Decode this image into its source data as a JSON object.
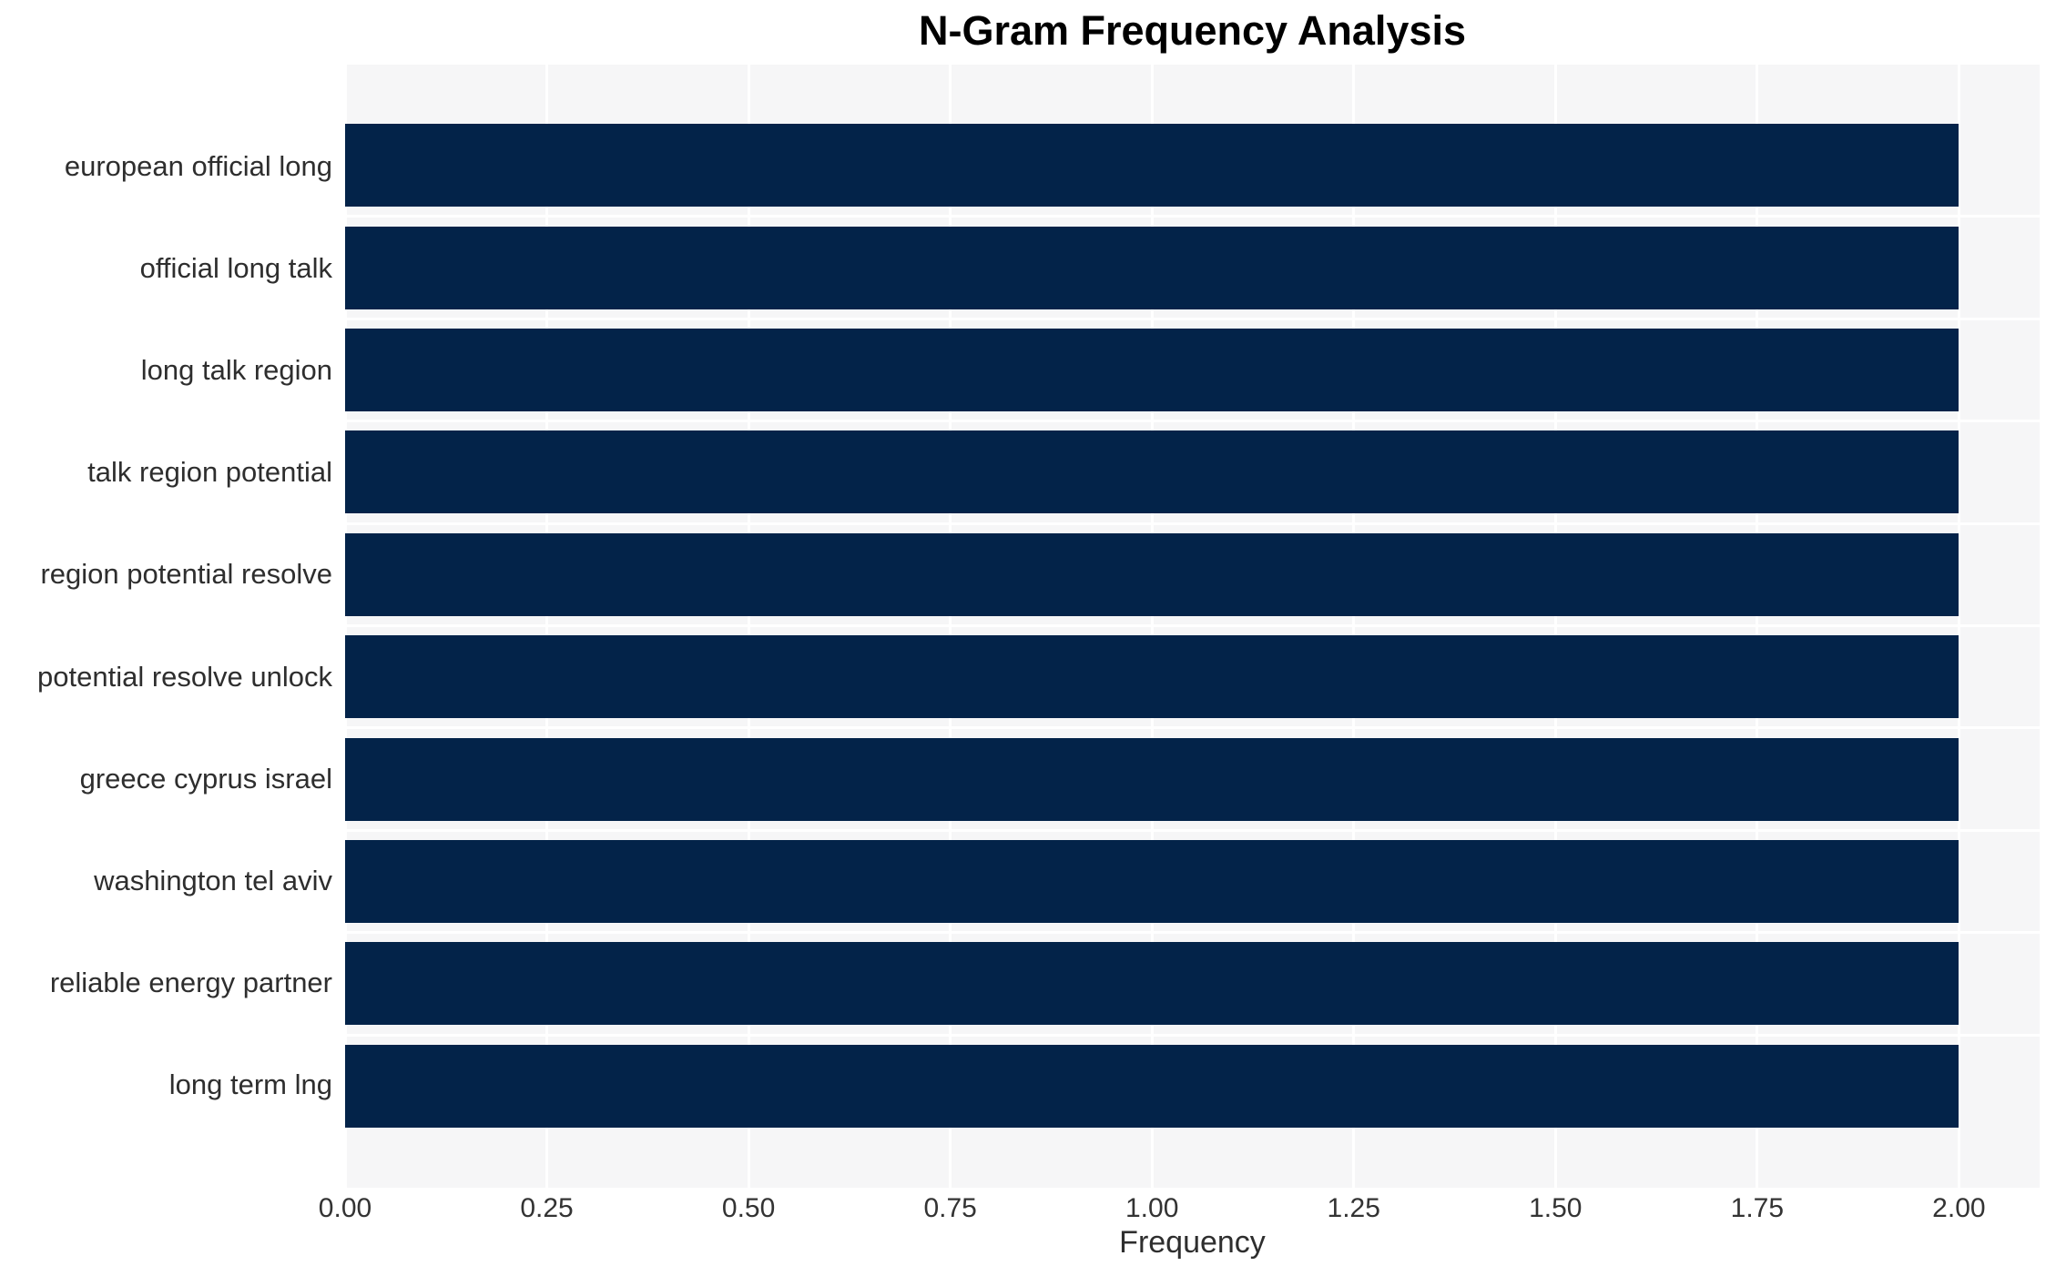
{
  "chart_data": {
    "type": "bar",
    "orientation": "horizontal",
    "title": "N-Gram Frequency Analysis",
    "xlabel": "Frequency",
    "ylabel": "",
    "categories": [
      "european official long",
      "official long talk",
      "long talk region",
      "talk region potential",
      "region potential resolve",
      "potential resolve unlock",
      "greece cyprus israel",
      "washington tel aviv",
      "reliable energy partner",
      "long term lng"
    ],
    "values": [
      2.0,
      2.0,
      2.0,
      2.0,
      2.0,
      2.0,
      2.0,
      2.0,
      2.0,
      2.0
    ],
    "xticks": [
      "0.00",
      "0.25",
      "0.50",
      "0.75",
      "1.00",
      "1.25",
      "1.50",
      "1.75",
      "2.00"
    ],
    "xlim": [
      0,
      2.1
    ],
    "grid": "white gridlines (vertical at ticks, horizontal between category rows) on light gray plot background",
    "legend": "none",
    "colors": {
      "bar": "#032349",
      "plot_background": "#f6f6f7",
      "figure_background": "#ffffff",
      "gridline": "#ffffff",
      "tick_text": "#333333",
      "label_text": "#2e2e2e",
      "title_text": "#000000"
    }
  }
}
